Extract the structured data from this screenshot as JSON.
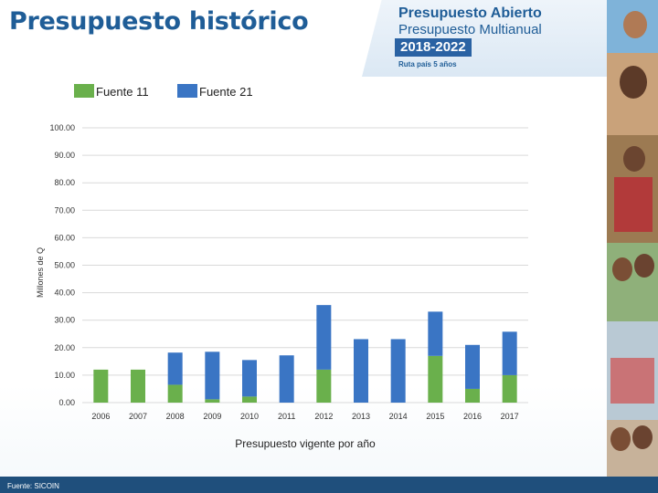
{
  "title": "Presupuesto histórico",
  "brand": {
    "line1": "Presupuesto Abierto",
    "line2": "Presupuesto Multianual",
    "line3": "2018-2022",
    "line4": "Ruta país 5 años"
  },
  "source": "Fuente: SICOIN",
  "colors": {
    "fuente11": "#6ab04c",
    "fuente21": "#3a75c4",
    "title": "#1f5d97",
    "grid": "#d9d9d9"
  },
  "chart_data": {
    "type": "bar",
    "stacked": true,
    "categories": [
      "2006",
      "2007",
      "2008",
      "2009",
      "2010",
      "2011",
      "2012",
      "2013",
      "2014",
      "2015",
      "2016",
      "2017"
    ],
    "series": [
      {
        "name": "Fuente 11",
        "values": [
          12,
          12,
          6.5,
          1.2,
          2.2,
          0,
          12,
          0,
          0,
          17,
          5,
          10
        ]
      },
      {
        "name": "Fuente 21",
        "values": [
          0,
          0,
          11.7,
          17.3,
          13.3,
          17.2,
          23.5,
          23.1,
          23.1,
          16.1,
          16,
          15.8
        ]
      }
    ],
    "xlabel": "Presupuesto vigente por año",
    "ylabel": "Millones de Q",
    "ylim": [
      0,
      100
    ],
    "yticks": [
      "0.00",
      "10.00",
      "20.00",
      "30.00",
      "40.00",
      "50.00",
      "60.00",
      "70.00",
      "80.00",
      "90.00",
      "100.00"
    ],
    "grid": true,
    "legend": "top-left"
  }
}
